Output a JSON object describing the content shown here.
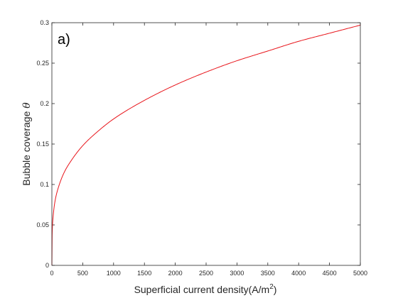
{
  "chart_data": {
    "type": "line",
    "panel_label": "a)",
    "xlabel": "Superficial current density(A/m",
    "xlabel_superscript": "2",
    "xlabel_suffix": ")",
    "ylabel": "Bubble coverage ",
    "ylabel_symbol": "θ",
    "xlim": [
      0,
      5000
    ],
    "ylim": [
      0,
      0.3
    ],
    "x_ticks": [
      0,
      500,
      1000,
      1500,
      2000,
      2500,
      3000,
      3500,
      4000,
      4500,
      5000
    ],
    "x_tick_labels": [
      "0",
      "500",
      "1000",
      "1500",
      "2000",
      "2500",
      "3000",
      "3500",
      "4000",
      "4500",
      "5000"
    ],
    "y_ticks": [
      0,
      0.05,
      0.1,
      0.15,
      0.2,
      0.25,
      0.3
    ],
    "y_tick_labels": [
      "0",
      "0.05",
      "0.1",
      "0.15",
      "0.2",
      "0.25",
      "0.3"
    ],
    "grid": false,
    "series": [
      {
        "color": "#e8151b",
        "x": [
          0,
          5,
          20,
          50,
          100,
          200,
          300,
          500,
          750,
          1000,
          1500,
          2000,
          2500,
          3000,
          3500,
          4000,
          4500,
          5000
        ],
        "y": [
          0,
          0.04,
          0.06,
          0.079,
          0.095,
          0.115,
          0.128,
          0.148,
          0.166,
          0.181,
          0.204,
          0.223,
          0.239,
          0.253,
          0.265,
          0.277,
          0.287,
          0.297
        ]
      }
    ]
  }
}
